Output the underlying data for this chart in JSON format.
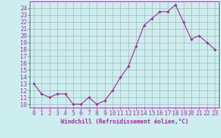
{
  "x": [
    0,
    1,
    2,
    3,
    4,
    5,
    6,
    7,
    8,
    9,
    10,
    11,
    12,
    13,
    14,
    15,
    16,
    17,
    18,
    19,
    20,
    21,
    22,
    23
  ],
  "y": [
    13.0,
    11.5,
    11.0,
    11.5,
    11.5,
    10.0,
    10.0,
    11.0,
    10.0,
    10.5,
    12.0,
    13.9,
    15.5,
    18.5,
    21.5,
    22.5,
    23.5,
    23.5,
    24.5,
    22.0,
    19.5,
    20.0,
    19.0,
    18.0
  ],
  "line_color": "#993399",
  "marker": "D",
  "marker_size": 2,
  "background_color": "#cceeee",
  "grid_color": "#aabbbb",
  "xlabel": "Windchill (Refroidissement éolien,°C)",
  "xlim": [
    -0.5,
    23.5
  ],
  "ylim": [
    9.5,
    25.0
  ],
  "yticks": [
    10,
    11,
    12,
    13,
    14,
    15,
    16,
    17,
    18,
    19,
    20,
    21,
    22,
    23,
    24
  ],
  "xticks": [
    0,
    1,
    2,
    3,
    4,
    5,
    6,
    7,
    8,
    9,
    10,
    11,
    12,
    13,
    14,
    15,
    16,
    17,
    18,
    19,
    20,
    21,
    22,
    23
  ],
  "tick_color": "#993399",
  "label_color": "#993399",
  "label_fontsize": 6,
  "tick_fontsize": 6
}
